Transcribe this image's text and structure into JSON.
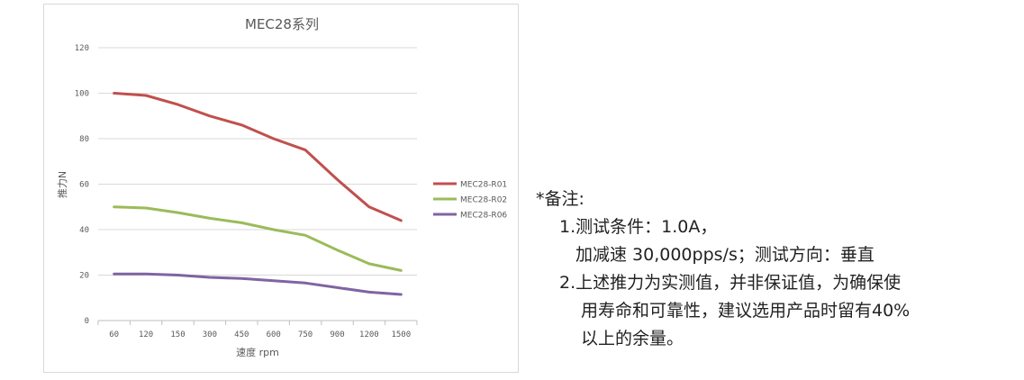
{
  "chart_data": {
    "type": "line",
    "title": "MEC28系列",
    "xlabel": "速度 rpm",
    "ylabel": "推力N",
    "categories": [
      "60",
      "120",
      "150",
      "300",
      "450",
      "600",
      "750",
      "900",
      "1200",
      "1500"
    ],
    "ylim": [
      0,
      120
    ],
    "yticks": [
      0,
      20,
      40,
      60,
      80,
      100,
      120
    ],
    "grid": true,
    "legend_position": "right",
    "series": [
      {
        "name": "MEC28-R01",
        "color": "#c0504d",
        "values": [
          100,
          99,
          95,
          90,
          86,
          80,
          75,
          62,
          50,
          44
        ]
      },
      {
        "name": "MEC28-R02",
        "color": "#9bbb59",
        "values": [
          50,
          49.5,
          47.5,
          45,
          43,
          40,
          37.5,
          31,
          25,
          22
        ]
      },
      {
        "name": "MEC28-R06",
        "color": "#8064a2",
        "values": [
          20.5,
          20.5,
          20,
          19,
          18.5,
          17.5,
          16.5,
          14.5,
          12.5,
          11.5
        ]
      }
    ]
  },
  "notes": {
    "heading": "*备注:",
    "line1": "1.测试条件：1.0A，",
    "line2": "加减速 30,000pps/s；测试方向：垂直",
    "line3": "2.上述推力为实测值，并非保证值，为确保使",
    "line4": "用寿命和可靠性，建议选用产品时留有40%",
    "line5": "以上的余量。"
  }
}
